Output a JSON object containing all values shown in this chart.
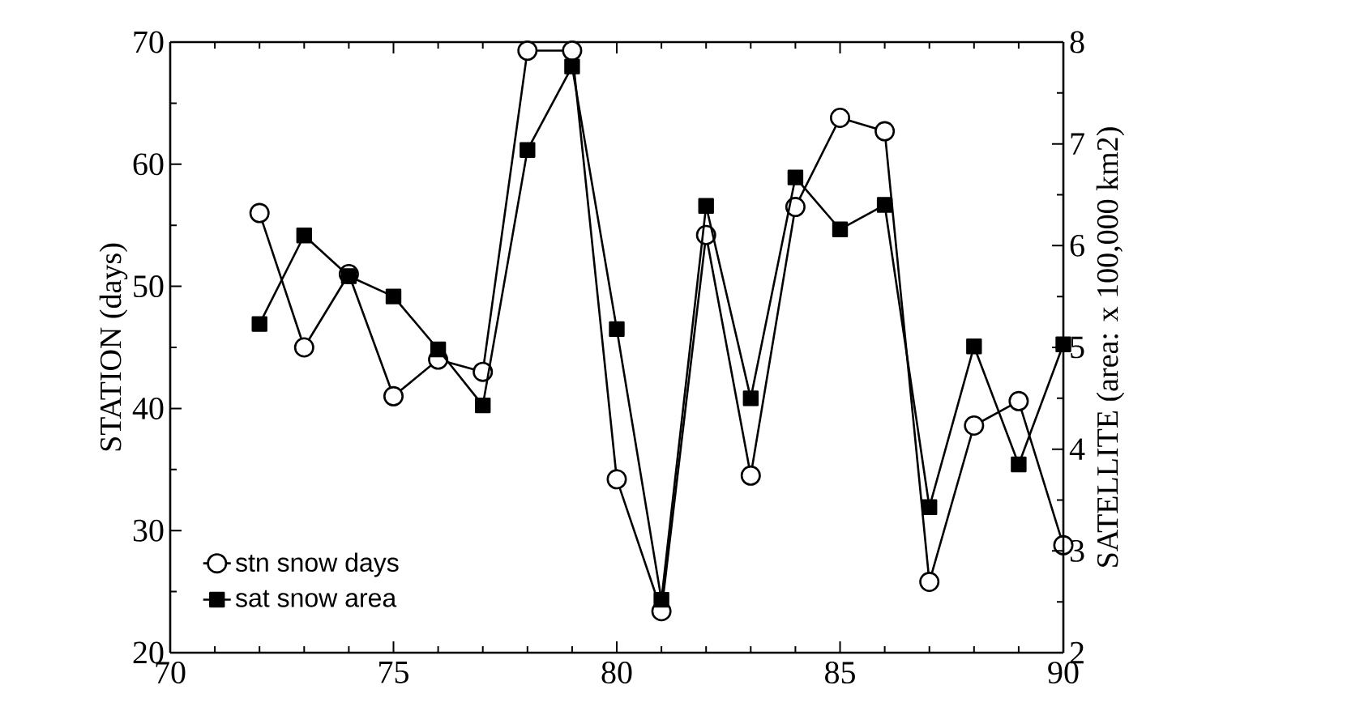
{
  "chart_data": {
    "type": "line",
    "ylabel": "STATION (days)",
    "y2label": "SATELLITE (area: x 100,000 km2)",
    "x": [
      72,
      73,
      74,
      75,
      76,
      77,
      78,
      79,
      80,
      81,
      82,
      83,
      84,
      85,
      86,
      87,
      88,
      89,
      90
    ],
    "series": [
      {
        "name": "stn snow days",
        "color": "#000000",
        "marker": "circle",
        "values": [
          56,
          45,
          51,
          41,
          44,
          43,
          69.3,
          69.3,
          34.2,
          23.4,
          54.2,
          34.5,
          56.5,
          63.8,
          62.7,
          25.8,
          38.6,
          40.6,
          28.8
        ]
      },
      {
        "name": "sat snow area",
        "color": "#000000",
        "marker": "square",
        "axis": "y2",
        "values": [
          5.23,
          6.1,
          5.7,
          5.5,
          4.98,
          4.43,
          6.94,
          7.76,
          5.18,
          2.52,
          6.39,
          4.5,
          6.67,
          6.16,
          6.4,
          3.43,
          5.01,
          3.85,
          5.03
        ]
      }
    ],
    "xlim": [
      70,
      90
    ],
    "xticks": [
      70,
      75,
      80,
      85,
      90
    ],
    "ylim": [
      20,
      70
    ],
    "yticks": [
      20,
      30,
      40,
      50,
      60,
      70
    ],
    "y2lim": [
      2,
      8
    ],
    "y2ticks": [
      2,
      3,
      4,
      5,
      6,
      7,
      8
    ],
    "legend": "bottom left",
    "grid": false,
    "line_style": "solid"
  }
}
